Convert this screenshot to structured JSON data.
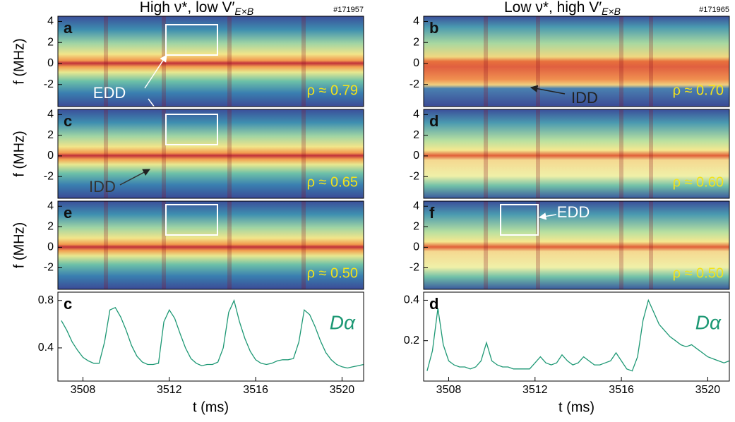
{
  "chart_data": [
    {
      "type": "spectrogram",
      "panel_label": "a",
      "title": "High ν*, low V′",
      "title_sub": "E×B",
      "shot": "#171957",
      "annotation": "ρ ≈ 0.79",
      "callout": "EDD",
      "ylabel": "f (MHz)",
      "ylim": [
        -4.1,
        4.5
      ],
      "yticks": [
        4,
        2,
        0,
        -2
      ]
    },
    {
      "type": "spectrogram",
      "panel_label": "b",
      "title": "Low ν*, high V′",
      "title_sub": "E×B",
      "shot": "#171965",
      "annotation": "ρ ≈ 0.70",
      "callout": "IDD",
      "ylim": [
        -4.1,
        4.5
      ],
      "yticks": [
        4,
        2,
        0,
        -2
      ]
    },
    {
      "type": "spectrogram",
      "panel_label": "c",
      "annotation": "ρ ≈ 0.65",
      "callout": "IDD",
      "ylabel": "f (MHz)",
      "ylim": [
        -4.1,
        4.5
      ],
      "yticks": [
        4,
        2,
        0,
        -2
      ]
    },
    {
      "type": "spectrogram",
      "panel_label": "d",
      "annotation": "ρ ≈ 0.60",
      "ylim": [
        -4.1,
        4.5
      ],
      "yticks": [
        4,
        2,
        0,
        -2
      ]
    },
    {
      "type": "spectrogram",
      "panel_label": "e",
      "annotation": "ρ ≈ 0.50",
      "ylabel": "f (MHz)",
      "ylim": [
        -4.1,
        4.5
      ],
      "yticks": [
        4,
        2,
        0,
        -2
      ]
    },
    {
      "type": "spectrogram",
      "panel_label": "f",
      "annotation": "ρ ≈ 0.50",
      "callout": "EDD",
      "ylim": [
        -4.1,
        4.5
      ],
      "yticks": [
        4,
        2,
        0,
        -2
      ]
    },
    {
      "type": "line",
      "panel_label": "c",
      "xlabel": "t (ms)",
      "xlim": [
        3506.84,
        3521
      ],
      "xticks": [
        3508,
        3512,
        3516,
        3520
      ],
      "ylim": [
        0.12,
        0.87
      ],
      "yticks": [
        0.4,
        0.8
      ],
      "x": [
        3507.0,
        3507.25,
        3507.5,
        3507.75,
        3508.0,
        3508.25,
        3508.5,
        3508.75,
        3509.0,
        3509.25,
        3509.5,
        3509.75,
        3510.0,
        3510.25,
        3510.5,
        3510.75,
        3511.0,
        3511.25,
        3511.5,
        3511.75,
        3512.0,
        3512.25,
        3512.5,
        3512.75,
        3513.0,
        3513.25,
        3513.5,
        3513.75,
        3514.0,
        3514.25,
        3514.5,
        3514.75,
        3515.0,
        3515.25,
        3515.5,
        3515.75,
        3516.0,
        3516.25,
        3516.5,
        3516.75,
        3517.0,
        3517.25,
        3517.5,
        3517.75,
        3518.0,
        3518.25,
        3518.5,
        3518.75,
        3519.0,
        3519.25,
        3519.5,
        3519.75,
        3520.0,
        3520.25,
        3520.5,
        3520.75,
        3521.0
      ],
      "series": [
        {
          "name": "Dα",
          "color": "#1d9874",
          "values": [
            0.63,
            0.55,
            0.45,
            0.38,
            0.32,
            0.29,
            0.27,
            0.27,
            0.45,
            0.72,
            0.74,
            0.66,
            0.55,
            0.42,
            0.33,
            0.28,
            0.26,
            0.26,
            0.27,
            0.62,
            0.72,
            0.65,
            0.52,
            0.4,
            0.31,
            0.27,
            0.25,
            0.26,
            0.26,
            0.28,
            0.4,
            0.7,
            0.8,
            0.62,
            0.48,
            0.37,
            0.3,
            0.27,
            0.26,
            0.27,
            0.29,
            0.3,
            0.3,
            0.31,
            0.45,
            0.72,
            0.68,
            0.58,
            0.46,
            0.36,
            0.3,
            0.26,
            0.24,
            0.23,
            0.24,
            0.25,
            0.26
          ]
        }
      ]
    },
    {
      "type": "line",
      "panel_label": "d",
      "xlabel": "t (ms)",
      "xlim": [
        3506.84,
        3521
      ],
      "xticks": [
        3508,
        3512,
        3516,
        3520
      ],
      "ylim": [
        0.0,
        0.44
      ],
      "yticks": [
        0.2,
        0.4
      ],
      "x": [
        3507.0,
        3507.25,
        3507.5,
        3507.75,
        3508.0,
        3508.25,
        3508.5,
        3508.75,
        3509.0,
        3509.25,
        3509.5,
        3509.75,
        3510.0,
        3510.25,
        3510.5,
        3510.75,
        3511.0,
        3511.25,
        3511.5,
        3511.75,
        3512.0,
        3512.25,
        3512.5,
        3512.75,
        3513.0,
        3513.25,
        3513.5,
        3513.75,
        3514.0,
        3514.25,
        3514.5,
        3514.75,
        3515.0,
        3515.25,
        3515.5,
        3515.75,
        3516.0,
        3516.25,
        3516.5,
        3516.75,
        3517.0,
        3517.25,
        3517.5,
        3517.75,
        3518.0,
        3518.25,
        3518.5,
        3518.75,
        3519.0,
        3519.25,
        3519.5,
        3519.75,
        3520.0,
        3520.25,
        3520.5,
        3520.75,
        3521.0
      ],
      "series": [
        {
          "name": "Dα",
          "color": "#1d9874",
          "values": [
            0.05,
            0.15,
            0.36,
            0.18,
            0.1,
            0.08,
            0.07,
            0.07,
            0.06,
            0.07,
            0.1,
            0.19,
            0.1,
            0.08,
            0.07,
            0.07,
            0.06,
            0.06,
            0.06,
            0.06,
            0.09,
            0.12,
            0.09,
            0.08,
            0.09,
            0.13,
            0.1,
            0.08,
            0.09,
            0.12,
            0.1,
            0.08,
            0.08,
            0.09,
            0.1,
            0.14,
            0.1,
            0.06,
            0.05,
            0.12,
            0.3,
            0.4,
            0.34,
            0.28,
            0.25,
            0.22,
            0.2,
            0.18,
            0.17,
            0.18,
            0.16,
            0.14,
            0.12,
            0.11,
            0.1,
            0.09,
            0.1
          ]
        }
      ]
    }
  ]
}
